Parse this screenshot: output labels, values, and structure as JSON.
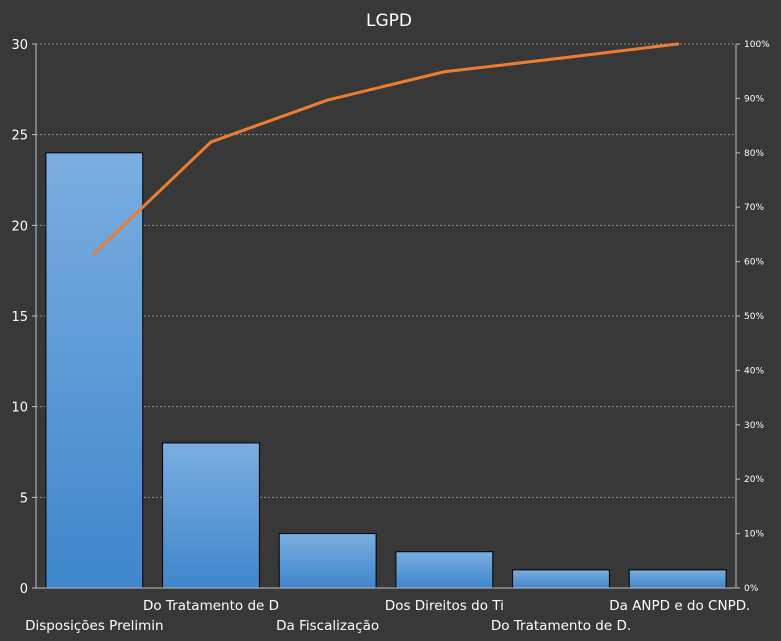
{
  "chart_data": {
    "type": "bar",
    "title": "LGPD",
    "categories": [
      "Disposições Prelimin",
      "Do Tratamento de D",
      "Da Fiscalização",
      "Dos Direitos do Ti",
      "Do Tratamento de D.",
      "Da ANPD e do CNPD"
    ],
    "trailing_label": ".",
    "series": [
      {
        "type": "bar",
        "values": [
          24,
          8,
          3,
          2,
          1,
          1
        ],
        "color": "#5b9bd5"
      },
      {
        "type": "line",
        "axis": "right",
        "values": [
          0.615,
          0.82,
          0.897,
          0.949,
          0.974,
          1.0
        ],
        "color": "#ed7d31"
      }
    ],
    "ylim": [
      0,
      30
    ],
    "yticks": [
      0,
      5,
      10,
      15,
      20,
      25,
      30
    ],
    "y2lim": [
      0,
      1
    ],
    "y2ticks": [
      "0%",
      "10%",
      "20%",
      "30%",
      "40%",
      "50%",
      "60%",
      "70%",
      "80%",
      "90%",
      "100%"
    ],
    "grid": true,
    "colors": {
      "background": "#383838",
      "grid": "#8c8c8c",
      "axis": "#bfbfbf",
      "text": "#ffffff"
    }
  }
}
